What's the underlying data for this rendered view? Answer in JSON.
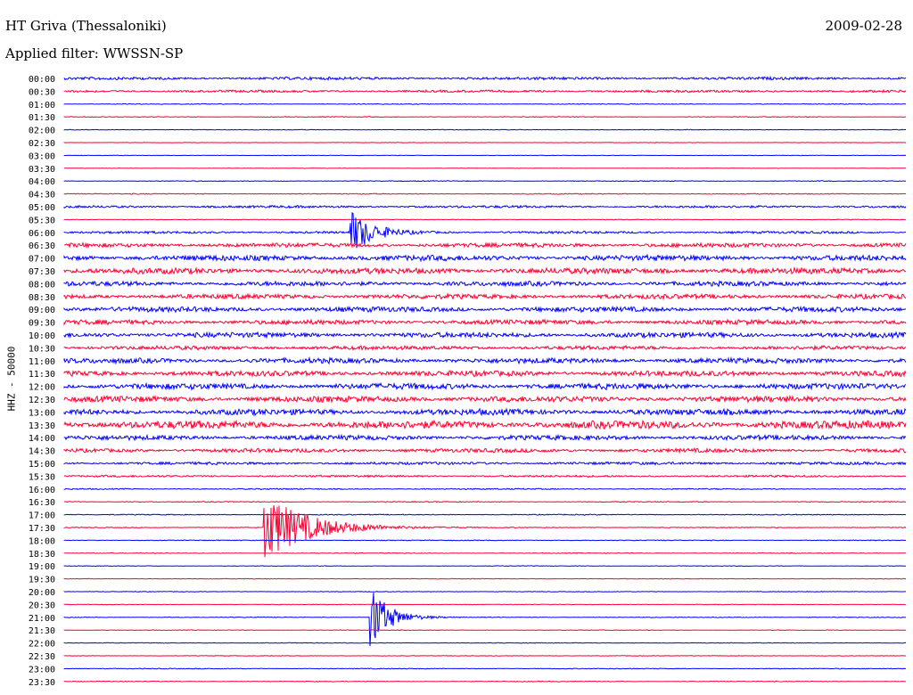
{
  "header": {
    "station": "HT Griva (Thessaloniki)",
    "date": "2009-02-28",
    "filter": "Applied filter: WWSSN-SP",
    "channel": "HHZ - 50000"
  },
  "colors": {
    "odd_rows": "#0000ff",
    "even_rows": "#ff0033"
  },
  "chart_data": {
    "type": "line",
    "title": "HT Griva (Thessaloniki)",
    "xlabel": "",
    "ylabel": "HHZ - 50000",
    "row_duration_minutes": 30,
    "categories": [
      "00:00",
      "00:30",
      "01:00",
      "01:30",
      "02:00",
      "02:30",
      "03:00",
      "03:30",
      "04:00",
      "04:30",
      "05:00",
      "05:30",
      "06:00",
      "06:30",
      "07:00",
      "07:30",
      "08:00",
      "08:30",
      "09:00",
      "09:30",
      "10:00",
      "10:30",
      "11:00",
      "11:30",
      "12:00",
      "12:30",
      "13:00",
      "13:30",
      "14:00",
      "14:30",
      "15:00",
      "15:30",
      "16:00",
      "16:30",
      "17:00",
      "17:30",
      "18:00",
      "18:30",
      "19:00",
      "19:30",
      "20:00",
      "20:30",
      "21:00",
      "21:30",
      "22:00",
      "22:30",
      "23:00",
      "23:30"
    ],
    "noise_level": [
      0.35,
      0.3,
      0.1,
      0.1,
      0.08,
      0.06,
      0.06,
      0.06,
      0.1,
      0.12,
      0.3,
      0.08,
      0.3,
      0.55,
      0.7,
      0.75,
      0.6,
      0.6,
      0.65,
      0.6,
      0.65,
      0.5,
      0.65,
      0.7,
      0.75,
      0.75,
      0.75,
      1.0,
      0.6,
      0.5,
      0.35,
      0.25,
      0.15,
      0.12,
      0.12,
      0.12,
      0.1,
      0.1,
      0.08,
      0.08,
      0.08,
      0.08,
      0.1,
      0.08,
      0.08,
      0.08,
      0.1,
      0.1
    ],
    "events": [
      {
        "row": "06:00",
        "minute": 10.3,
        "amplitude": 1.6,
        "duration_minutes": 1.2
      },
      {
        "row": "17:30",
        "minute": 7.2,
        "amplitude": 2.6,
        "duration_minutes": 2.5
      },
      {
        "row": "21:00",
        "minute": 11.0,
        "amplitude": 2.4,
        "duration_minutes": 1.0
      }
    ]
  }
}
